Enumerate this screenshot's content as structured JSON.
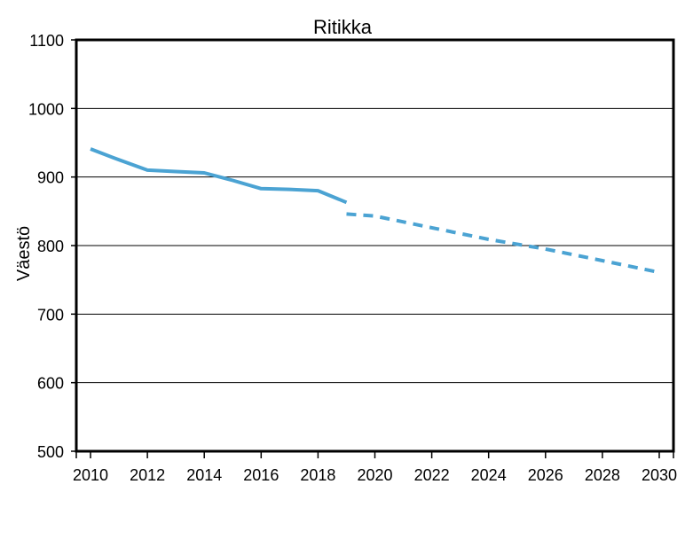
{
  "chart_data": {
    "type": "line",
    "title": "Ritikka",
    "xlabel": "",
    "ylabel": "Väestö",
    "xlim": [
      2009.5,
      2030.5
    ],
    "ylim": [
      500,
      1100
    ],
    "y_ticks": [
      500,
      600,
      700,
      800,
      900,
      1000,
      1100
    ],
    "x_ticks": [
      2010,
      2012,
      2014,
      2016,
      2018,
      2020,
      2022,
      2024,
      2026,
      2028,
      2030
    ],
    "grid": "horizontal",
    "legend": "none",
    "series": [
      {
        "style": "solid",
        "color": "#4ba3d3",
        "x": [
          2010,
          2011,
          2012,
          2013,
          2014,
          2015,
          2016,
          2017,
          2018,
          2019
        ],
        "y": [
          941,
          925,
          910,
          908,
          906,
          895,
          883,
          882,
          880,
          863
        ]
      },
      {
        "style": "dashed",
        "color": "#4ba3d3",
        "x": [
          2019,
          2020,
          2022,
          2024,
          2026,
          2028,
          2030
        ],
        "y": [
          846,
          843,
          826,
          809,
          795,
          778,
          761
        ]
      }
    ]
  }
}
